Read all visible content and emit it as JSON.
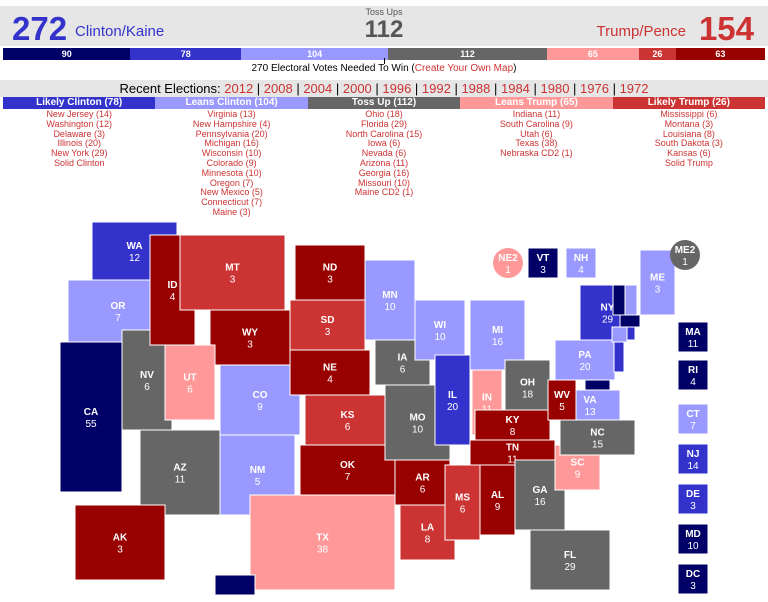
{
  "colors": {
    "safe_d": "#000066",
    "likely_d": "#3333cc",
    "leans_d": "#9999ff",
    "tossup": "#666666",
    "leans_r": "#ff9999",
    "likely_r": "#cc3333",
    "safe_r": "#990000"
  },
  "header": {
    "dem_total": "272",
    "dem_ticket": "Clinton/Kaine",
    "tossup_label": "Toss Ups",
    "tossup_total": "112",
    "rep_ticket": "Trump/Pence",
    "rep_total": "154"
  },
  "bar": [
    {
      "value": 90,
      "rating": "safe_d"
    },
    {
      "value": 78,
      "rating": "likely_d"
    },
    {
      "value": 104,
      "rating": "leans_d"
    },
    {
      "value": 112,
      "rating": "tossup"
    },
    {
      "value": 65,
      "rating": "leans_r"
    },
    {
      "value": 26,
      "rating": "likely_r"
    },
    {
      "value": 63,
      "rating": "safe_r"
    }
  ],
  "needed": {
    "text": "270 Electoral Votes Needed To Win (",
    "link": "Create Your Own Map",
    "close": ")"
  },
  "recent": {
    "label": "Recent Elections: ",
    "years": [
      "2012",
      "2008",
      "2004",
      "2000",
      "1996",
      "1992",
      "1988",
      "1984",
      "1980",
      "1976",
      "1972"
    ]
  },
  "columns": [
    {
      "title": "Likely Clinton (78)",
      "rating": "likely_d",
      "items": [
        "New Jersey (14)",
        "Washington (12)",
        "Delaware (3)",
        "Illinois (20)",
        "New York (29)",
        "Solid Clinton"
      ]
    },
    {
      "title": "Leans Clinton (104)",
      "rating": "leans_d",
      "items": [
        "Virginia (13)",
        "New Hampshire (4)",
        "Pennsylvania (20)",
        "Michigan (16)",
        "Wisconsin (10)",
        "Colorado (9)",
        "Minnesota (10)",
        "Oregon (7)",
        "New Mexico (5)",
        "Connecticut (7)",
        "Maine (3)"
      ]
    },
    {
      "title": "Toss Up (112)",
      "rating": "tossup",
      "items": [
        "Ohio (18)",
        "Florida (29)",
        "North Carolina (15)",
        "Iowa (6)",
        "Nevada (6)",
        "Arizona (11)",
        "Georgia (16)",
        "Missouri (10)",
        "Maine CD2 (1)"
      ]
    },
    {
      "title": "Leans Trump (65)",
      "rating": "leans_r",
      "items": [
        "Indiana (11)",
        "South Carolina (9)",
        "Utah (6)",
        "Texas (38)",
        "Nebraska CD2 (1)"
      ]
    },
    {
      "title": "Likely Trump (26)",
      "rating": "likely_r",
      "items": [
        "Mississippi (6)",
        "Montana (3)",
        "Louisiana (8)",
        "South Dakota (3)",
        "Kansas (6)",
        "Solid Trump"
      ]
    }
  ],
  "states": [
    {
      "abbr": "WA",
      "ev": "12",
      "rating": "likely_d"
    },
    {
      "abbr": "OR",
      "ev": "7",
      "rating": "leans_d"
    },
    {
      "abbr": "CA",
      "ev": "55",
      "rating": "safe_d"
    },
    {
      "abbr": "NV",
      "ev": "6",
      "rating": "tossup"
    },
    {
      "abbr": "ID",
      "ev": "4",
      "rating": "safe_r"
    },
    {
      "abbr": "MT",
      "ev": "3",
      "rating": "likely_r"
    },
    {
      "abbr": "WY",
      "ev": "3",
      "rating": "safe_r"
    },
    {
      "abbr": "UT",
      "ev": "6",
      "rating": "leans_r"
    },
    {
      "abbr": "CO",
      "ev": "9",
      "rating": "leans_d"
    },
    {
      "abbr": "AZ",
      "ev": "11",
      "rating": "tossup"
    },
    {
      "abbr": "NM",
      "ev": "5",
      "rating": "leans_d"
    },
    {
      "abbr": "ND",
      "ev": "3",
      "rating": "safe_r"
    },
    {
      "abbr": "SD",
      "ev": "3",
      "rating": "likely_r"
    },
    {
      "abbr": "NE",
      "ev": "4",
      "rating": "safe_r"
    },
    {
      "abbr": "KS",
      "ev": "6",
      "rating": "likely_r"
    },
    {
      "abbr": "OK",
      "ev": "7",
      "rating": "safe_r"
    },
    {
      "abbr": "TX",
      "ev": "38",
      "rating": "leans_r"
    },
    {
      "abbr": "MN",
      "ev": "10",
      "rating": "leans_d"
    },
    {
      "abbr": "IA",
      "ev": "6",
      "rating": "tossup"
    },
    {
      "abbr": "MO",
      "ev": "10",
      "rating": "tossup"
    },
    {
      "abbr": "AR",
      "ev": "6",
      "rating": "safe_r"
    },
    {
      "abbr": "LA",
      "ev": "8",
      "rating": "likely_r"
    },
    {
      "abbr": "WI",
      "ev": "10",
      "rating": "leans_d"
    },
    {
      "abbr": "IL",
      "ev": "20",
      "rating": "likely_d"
    },
    {
      "abbr": "MI",
      "ev": "16",
      "rating": "leans_d"
    },
    {
      "abbr": "IN",
      "ev": "11",
      "rating": "leans_r"
    },
    {
      "abbr": "OH",
      "ev": "18",
      "rating": "tossup"
    },
    {
      "abbr": "KY",
      "ev": "8",
      "rating": "safe_r"
    },
    {
      "abbr": "TN",
      "ev": "11",
      "rating": "safe_r"
    },
    {
      "abbr": "MS",
      "ev": "6",
      "rating": "likely_r"
    },
    {
      "abbr": "AL",
      "ev": "9",
      "rating": "safe_r"
    },
    {
      "abbr": "GA",
      "ev": "16",
      "rating": "tossup"
    },
    {
      "abbr": "FL",
      "ev": "29",
      "rating": "tossup"
    },
    {
      "abbr": "SC",
      "ev": "9",
      "rating": "leans_r"
    },
    {
      "abbr": "NC",
      "ev": "15",
      "rating": "tossup"
    },
    {
      "abbr": "VA",
      "ev": "13",
      "rating": "leans_d"
    },
    {
      "abbr": "WV",
      "ev": "5",
      "rating": "safe_r"
    },
    {
      "abbr": "PA",
      "ev": "20",
      "rating": "leans_d"
    },
    {
      "abbr": "NY",
      "ev": "29",
      "rating": "likely_d"
    },
    {
      "abbr": "ME",
      "ev": "3",
      "rating": "leans_d"
    },
    {
      "abbr": "AK",
      "ev": "3",
      "rating": "safe_r"
    },
    {
      "abbr": "HI",
      "ev": "",
      "rating": "safe_d"
    }
  ],
  "small_boxes": [
    {
      "abbr": "NE2",
      "ev": "1",
      "rating": "leans_r",
      "shape": "circle"
    },
    {
      "abbr": "VT",
      "ev": "3",
      "rating": "safe_d",
      "shape": "square"
    },
    {
      "abbr": "NH",
      "ev": "4",
      "rating": "leans_d",
      "shape": "square"
    },
    {
      "abbr": "ME2",
      "ev": "1",
      "rating": "tossup",
      "shape": "circle"
    },
    {
      "abbr": "MA",
      "ev": "11",
      "rating": "safe_d",
      "shape": "square"
    },
    {
      "abbr": "RI",
      "ev": "4",
      "rating": "safe_d",
      "shape": "square"
    },
    {
      "abbr": "CT",
      "ev": "7",
      "rating": "leans_d",
      "shape": "square"
    },
    {
      "abbr": "NJ",
      "ev": "14",
      "rating": "likely_d",
      "shape": "square"
    },
    {
      "abbr": "DE",
      "ev": "3",
      "rating": "likely_d",
      "shape": "square"
    },
    {
      "abbr": "MD",
      "ev": "10",
      "rating": "safe_d",
      "shape": "square"
    },
    {
      "abbr": "DC",
      "ev": "3",
      "rating": "safe_d",
      "shape": "square"
    }
  ]
}
